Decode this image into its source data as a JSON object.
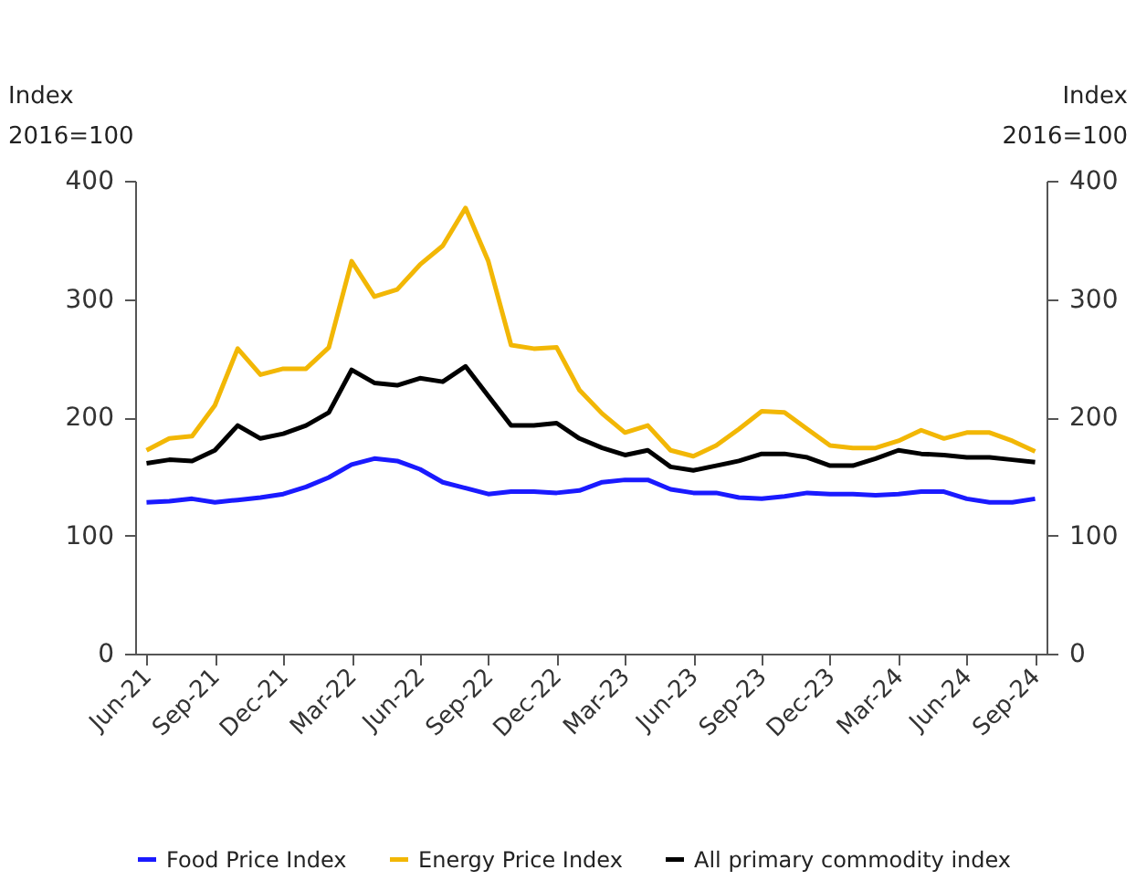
{
  "chart_data": {
    "type": "line",
    "ylabel": "Index\n2016=100",
    "y2label": "Index\n2016=100",
    "categories": [
      "Jun-21",
      null,
      null,
      "Sep-21",
      null,
      null,
      "Dec-21",
      null,
      null,
      "Mar-22",
      null,
      null,
      "Jun-22",
      null,
      null,
      "Sep-22",
      null,
      null,
      "Dec-22",
      null,
      null,
      "Mar-23",
      null,
      null,
      "Jun-23",
      null,
      null,
      "Sep-23",
      null,
      null,
      "Dec-23",
      null,
      null,
      "Mar-24",
      null,
      null,
      "Jun-24",
      null,
      null,
      "Sep-24"
    ],
    "series": [
      {
        "name": "Food Price Index",
        "color": "#1a1aff",
        "values": [
          128,
          129,
          131,
          128,
          130,
          132,
          135,
          141,
          149,
          160,
          165,
          163,
          156,
          145,
          140,
          135,
          137,
          137,
          136,
          138,
          145,
          147,
          147,
          139,
          136,
          136,
          132,
          131,
          133,
          136,
          135,
          135,
          134,
          135,
          137,
          137,
          131,
          128,
          128,
          131
        ]
      },
      {
        "name": "Energy Price Index",
        "color": "#f2b705",
        "values": [
          172,
          182,
          184,
          210,
          258,
          236,
          241,
          241,
          259,
          332,
          302,
          308,
          329,
          345,
          377,
          332,
          261,
          258,
          259,
          223,
          203,
          187,
          193,
          172,
          167,
          176,
          190,
          205,
          204,
          190,
          176,
          174,
          174,
          180,
          189,
          182,
          187,
          187,
          180,
          171
        ]
      },
      {
        "name": "All primary commodity index",
        "color": "#000000",
        "values": [
          161,
          164,
          163,
          172,
          193,
          182,
          186,
          193,
          204,
          240,
          229,
          227,
          233,
          230,
          243,
          218,
          193,
          193,
          195,
          182,
          174,
          168,
          172,
          158,
          155,
          159,
          163,
          169,
          169,
          166,
          159,
          159,
          165,
          172,
          169,
          168,
          166,
          166,
          164,
          162
        ]
      }
    ],
    "ylim": [
      0,
      400
    ],
    "yticks": [
      0,
      100,
      200,
      300,
      400
    ],
    "y2lim": [
      0,
      400
    ],
    "y2ticks": [
      0,
      100,
      200,
      300,
      400
    ],
    "legend": "bottom",
    "line_style": "solid"
  }
}
